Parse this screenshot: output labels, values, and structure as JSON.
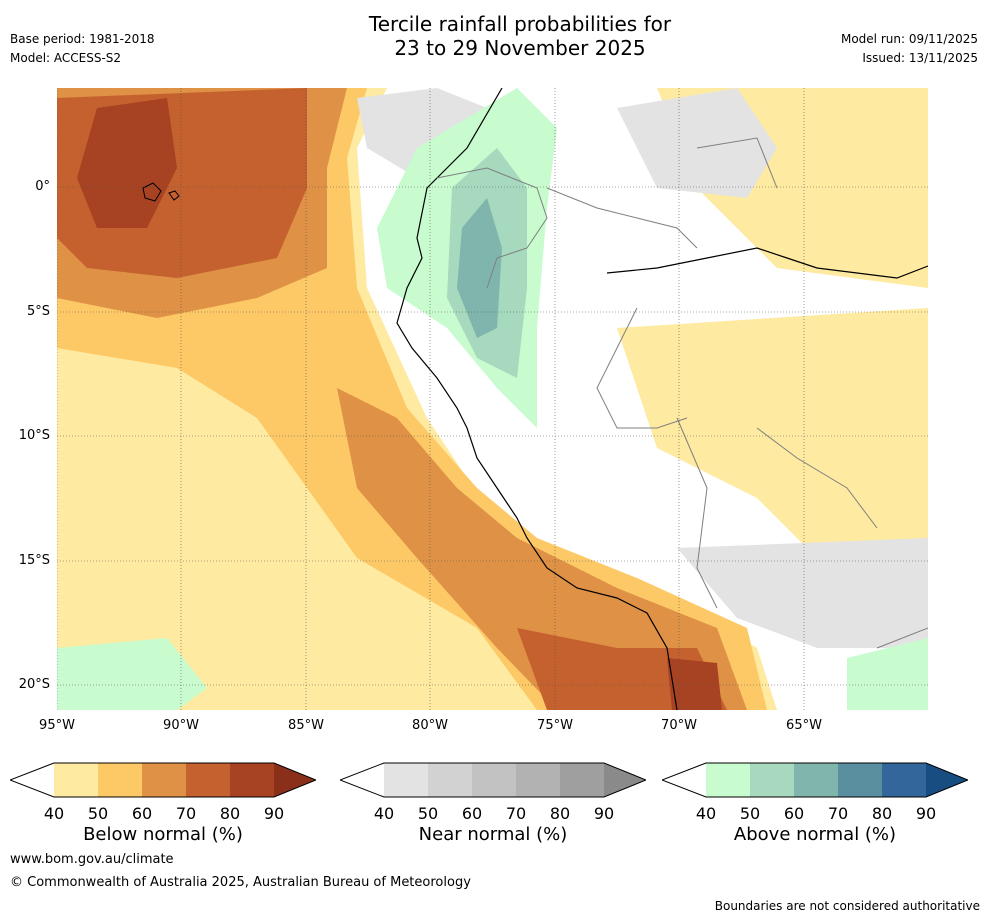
{
  "header": {
    "title_line1": "Tercile rainfall probabilities for",
    "title_line2": "23 to 29 November 2025",
    "base_period": "Base period: 1981-2018",
    "model": "Model: ACCESS-S2",
    "model_run": "Model run: 09/11/2025",
    "issued": "Issued: 13/11/2025"
  },
  "map": {
    "lat_labels": [
      "0°",
      "5°S",
      "10°S",
      "15°S",
      "20°S"
    ],
    "lon_labels": [
      "95°W",
      "90°W",
      "85°W",
      "80°W",
      "75°W",
      "70°W",
      "65°W"
    ]
  },
  "colorbars": [
    {
      "label": "Below normal (%)",
      "ticks": [
        "40",
        "50",
        "60",
        "70",
        "80",
        "90"
      ],
      "colors": [
        "#ffffff",
        "#feeaa0",
        "#fdc966",
        "#df9145",
        "#c4612f",
        "#a74222",
        "#8a2f1a"
      ]
    },
    {
      "label": "Near normal (%)",
      "ticks": [
        "40",
        "50",
        "60",
        "70",
        "80",
        "90"
      ],
      "colors": [
        "#ffffff",
        "#e3e3e3",
        "#d2d2d2",
        "#c2c2c2",
        "#b2b2b2",
        "#9f9f9f",
        "#8a8a8a"
      ]
    },
    {
      "label": "Above normal (%)",
      "ticks": [
        "40",
        "50",
        "60",
        "70",
        "80",
        "90"
      ],
      "colors": [
        "#ffffff",
        "#c8fbce",
        "#a6d9bd",
        "#7fb5ad",
        "#5a8fa0",
        "#33669a",
        "#174d80"
      ]
    }
  ],
  "footer": {
    "url": "www.bom.gov.au/climate",
    "copyright": "© Commonwealth of Australia 2025, Australian Bureau of Meteorology",
    "disclaimer": "Boundaries are not considered authoritative"
  }
}
